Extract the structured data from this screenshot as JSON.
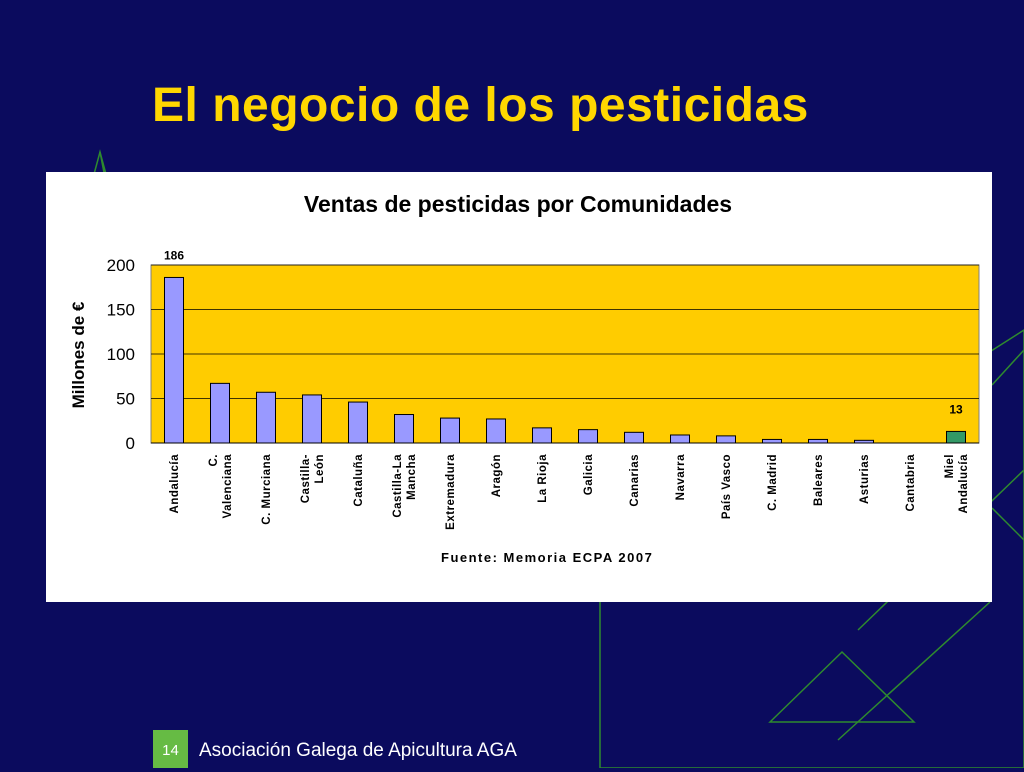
{
  "slide": {
    "title": "El negocio de los pesticidas",
    "number": "14",
    "footer": "Asociación Galega de Apicultura AGA"
  },
  "colors": {
    "background": "#0b0b5e",
    "title": "#ffd700",
    "plot_area": "#ffcc00",
    "bar": "#9999ff",
    "bar_highlight": "#339966",
    "decor_lines": "#2e8b2e",
    "slide_number_box": "#66bb44"
  },
  "chart_data": {
    "type": "bar",
    "title": "Ventas de pesticidas por Comunidades",
    "ylabel": "Millones de €",
    "xlabel": "",
    "ylim": [
      0,
      200
    ],
    "yticks": [
      0,
      50,
      100,
      150,
      200
    ],
    "grid": true,
    "legend": "none",
    "categories": [
      [
        "Andalucía"
      ],
      [
        "C.",
        "Valenciana"
      ],
      [
        "C. Murciana"
      ],
      [
        "Castilla-",
        "León"
      ],
      [
        "Cataluña"
      ],
      [
        "Castilla-La",
        "Mancha"
      ],
      [
        "Extremadura"
      ],
      [
        "Aragón"
      ],
      [
        "La Rioja"
      ],
      [
        "Galicia"
      ],
      [
        "Canarias"
      ],
      [
        "Navarra"
      ],
      [
        "País Vasco"
      ],
      [
        "C. Madrid"
      ],
      [
        "Baleares"
      ],
      [
        "Asturias"
      ],
      [
        "Cantabria"
      ],
      [
        "Miel",
        "Andalucía"
      ]
    ],
    "values": [
      186,
      67,
      57,
      54,
      46,
      32,
      28,
      27,
      17,
      15,
      12,
      9,
      8,
      4,
      4,
      3,
      0,
      13
    ],
    "highlight_index": 17,
    "data_labels": [
      {
        "index": 0,
        "text": "186"
      },
      {
        "index": 17,
        "text": "13"
      }
    ],
    "source": "Fuente: Memoria ECPA 2007"
  }
}
